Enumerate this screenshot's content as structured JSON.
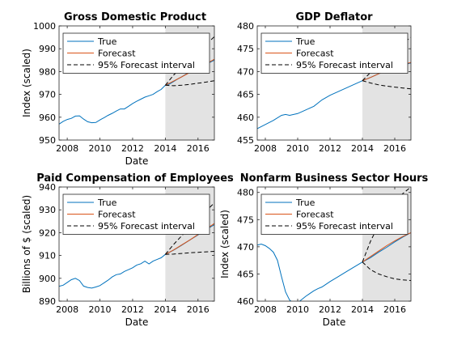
{
  "chart_data": [
    {
      "type": "line",
      "title": "Gross Domestic Product",
      "xlabel": "Date",
      "ylabel": "Index (scaled)",
      "xlim": [
        2007.5,
        2017.0
      ],
      "ylim": [
        950,
        1000
      ],
      "xticks": [
        2008,
        2010,
        2012,
        2014,
        2016
      ],
      "yticks": [
        950,
        960,
        970,
        980,
        990,
        1000
      ],
      "shade_from": 2014.0,
      "legend_position": "top-left",
      "series": [
        {
          "name": "True",
          "color": "#0072bd",
          "style": "solid",
          "x": [
            2007.5,
            2007.75,
            2008.0,
            2008.25,
            2008.5,
            2008.75,
            2009.0,
            2009.25,
            2009.5,
            2009.75,
            2010.0,
            2010.25,
            2010.5,
            2010.75,
            2011.0,
            2011.25,
            2011.5,
            2011.75,
            2012.0,
            2012.25,
            2012.5,
            2012.75,
            2013.0,
            2013.25,
            2013.5,
            2013.75,
            2014.0,
            2014.25,
            2014.5,
            2014.75,
            2015.0,
            2015.25,
            2015.5,
            2015.75,
            2016.0,
            2016.25,
            2016.5,
            2016.75,
            2017.0
          ],
          "y": [
            957.0,
            958.2,
            959.0,
            959.5,
            960.5,
            960.6,
            959.2,
            958.0,
            957.6,
            957.7,
            958.8,
            959.8,
            960.8,
            961.7,
            962.7,
            963.6,
            963.6,
            964.8,
            966.0,
            967.0,
            967.9,
            968.8,
            969.4,
            970.0,
            971.2,
            972.2,
            974.0,
            974.5,
            975.6,
            976.7,
            977.7,
            978.8,
            979.7,
            980.7,
            981.6,
            982.5,
            983.3,
            984.1,
            985.0
          ]
        },
        {
          "name": "Forecast",
          "color": "#d95319",
          "style": "solid",
          "x": [
            2014.0,
            2014.5,
            2015.0,
            2015.5,
            2016.0,
            2016.5,
            2017.0
          ],
          "y": [
            974.0,
            975.8,
            977.7,
            979.6,
            981.5,
            983.4,
            985.4
          ]
        },
        {
          "name": "95% Forecast interval",
          "color": "#000000",
          "style": "dashed",
          "x": [
            2014.0,
            2014.5,
            2015.0,
            2015.5,
            2016.0,
            2016.5,
            2017.0
          ],
          "y": [
            974.0,
            978.4,
            982.0,
            985.3,
            988.6,
            991.9,
            995.3
          ]
        },
        {
          "name": "",
          "color": "#000000",
          "style": "dashed",
          "x": [
            2014.0,
            2014.5,
            2015.0,
            2015.5,
            2016.0,
            2016.5,
            2017.0
          ],
          "y": [
            974.0,
            973.8,
            974.0,
            974.4,
            974.9,
            975.4,
            976.0
          ]
        }
      ]
    },
    {
      "type": "line",
      "title": "GDP Deflator",
      "xlabel": "",
      "ylabel": "",
      "xlim": [
        2007.5,
        2017.0
      ],
      "ylim": [
        455,
        480
      ],
      "xticks": [
        2008,
        2010,
        2012,
        2014,
        2016
      ],
      "yticks": [
        455,
        460,
        465,
        470,
        475,
        480
      ],
      "shade_from": 2014.0,
      "legend_position": "top-left",
      "series": [
        {
          "name": "True",
          "color": "#0072bd",
          "style": "solid",
          "x": [
            2007.5,
            2008.0,
            2008.5,
            2009.0,
            2009.25,
            2009.5,
            2010.0,
            2010.5,
            2011.0,
            2011.5,
            2012.0,
            2012.5,
            2013.0,
            2013.5,
            2014.0,
            2014.5,
            2015.0,
            2015.5,
            2016.0,
            2016.5,
            2017.0
          ],
          "y": [
            457.5,
            458.4,
            459.3,
            460.4,
            460.6,
            460.4,
            460.8,
            461.6,
            462.4,
            463.8,
            464.8,
            465.6,
            466.4,
            467.2,
            468.0,
            468.7,
            469.5,
            470.2,
            470.9,
            471.4,
            471.9
          ]
        },
        {
          "name": "Forecast",
          "color": "#d95319",
          "style": "solid",
          "x": [
            2014.0,
            2014.5,
            2015.0,
            2015.5,
            2016.0,
            2016.5,
            2017.0
          ],
          "y": [
            468.0,
            468.7,
            469.5,
            470.2,
            470.9,
            471.5,
            472.0
          ]
        },
        {
          "name": "95% Forecast interval",
          "color": "#000000",
          "style": "dashed",
          "x": [
            2014.0,
            2014.5,
            2015.0,
            2015.5,
            2016.0,
            2016.5,
            2017.0
          ],
          "y": [
            468.0,
            469.8,
            471.6,
            473.2,
            474.8,
            476.2,
            477.5
          ]
        },
        {
          "name": "",
          "color": "#000000",
          "style": "dashed",
          "x": [
            2014.0,
            2014.5,
            2015.0,
            2015.5,
            2016.0,
            2016.5,
            2017.0
          ],
          "y": [
            468.0,
            467.5,
            467.1,
            466.8,
            466.6,
            466.4,
            466.2
          ]
        }
      ]
    },
    {
      "type": "line",
      "title": "Paid Compensation of Employees",
      "xlabel": "Date",
      "ylabel": "Billions of $ (scaled)",
      "xlim": [
        2007.5,
        2017.0
      ],
      "ylim": [
        890,
        940
      ],
      "xticks": [
        2008,
        2010,
        2012,
        2014,
        2016
      ],
      "yticks": [
        890,
        900,
        910,
        920,
        930,
        940
      ],
      "shade_from": 2014.0,
      "legend_position": "top-left",
      "series": [
        {
          "name": "True",
          "color": "#0072bd",
          "style": "solid",
          "x": [
            2007.5,
            2007.75,
            2008.0,
            2008.25,
            2008.5,
            2008.75,
            2009.0,
            2009.25,
            2009.5,
            2009.75,
            2010.0,
            2010.25,
            2010.5,
            2010.75,
            2011.0,
            2011.25,
            2011.5,
            2011.75,
            2012.0,
            2012.25,
            2012.5,
            2012.75,
            2013.0,
            2013.25,
            2013.5,
            2013.75,
            2014.0,
            2014.5,
            2015.0,
            2015.5,
            2016.0,
            2016.5,
            2017.0
          ],
          "y": [
            896.5,
            897.0,
            898.2,
            899.4,
            900.0,
            899.0,
            896.6,
            896.0,
            895.7,
            896.2,
            896.8,
            898.0,
            899.2,
            900.6,
            901.6,
            901.9,
            903.0,
            903.8,
            904.6,
            905.8,
            906.4,
            907.5,
            906.3,
            907.5,
            908.3,
            909.0,
            910.5,
            912.3,
            914.5,
            916.8,
            919.0,
            921.4,
            923.5
          ]
        },
        {
          "name": "Forecast",
          "color": "#d95319",
          "style": "solid",
          "x": [
            2014.0,
            2014.5,
            2015.0,
            2015.5,
            2016.0,
            2016.5,
            2017.0
          ],
          "y": [
            910.5,
            912.4,
            914.6,
            916.8,
            919.2,
            921.6,
            924.0
          ]
        },
        {
          "name": "95% Forecast interval",
          "color": "#000000",
          "style": "dashed",
          "x": [
            2014.0,
            2014.5,
            2015.0,
            2015.5,
            2016.0,
            2016.5,
            2017.0
          ],
          "y": [
            910.5,
            914.8,
            918.6,
            922.3,
            926.0,
            929.6,
            933.0
          ]
        },
        {
          "name": "",
          "color": "#000000",
          "style": "dashed",
          "x": [
            2014.0,
            2014.5,
            2015.0,
            2015.5,
            2016.0,
            2016.5,
            2017.0
          ],
          "y": [
            910.5,
            910.6,
            910.9,
            911.2,
            911.4,
            911.6,
            911.8
          ]
        }
      ]
    },
    {
      "type": "line",
      "title": "Nonfarm Business Sector Hours",
      "xlabel": "Date",
      "ylabel": "Index (scaled)",
      "xlim": [
        2007.5,
        2017.0
      ],
      "ylim": [
        460,
        481
      ],
      "xticks": [
        2008,
        2010,
        2012,
        2014,
        2016
      ],
      "yticks": [
        460,
        465,
        470,
        475,
        480
      ],
      "shade_from": 2014.0,
      "legend_position": "top-left",
      "series": [
        {
          "name": "True",
          "color": "#0072bd",
          "style": "solid",
          "x": [
            2007.5,
            2007.75,
            2008.0,
            2008.25,
            2008.5,
            2008.75,
            2009.0,
            2009.25,
            2009.5,
            2009.75,
            2010.0,
            2010.25,
            2010.5,
            2010.75,
            2011.0,
            2011.25,
            2011.5,
            2011.75,
            2012.0,
            2012.5,
            2013.0,
            2013.5,
            2014.0,
            2014.5,
            2015.0,
            2015.5,
            2016.0,
            2016.5,
            2017.0
          ],
          "y": [
            470.3,
            470.5,
            470.2,
            469.7,
            469.0,
            467.5,
            464.5,
            461.7,
            460.2,
            459.6,
            459.7,
            460.3,
            460.9,
            461.4,
            461.9,
            462.3,
            462.6,
            463.1,
            463.6,
            464.5,
            465.4,
            466.3,
            467.2,
            468.0,
            469.0,
            469.9,
            470.9,
            471.8,
            472.6
          ]
        },
        {
          "name": "Forecast",
          "color": "#d95319",
          "style": "solid",
          "x": [
            2014.0,
            2014.5,
            2015.0,
            2015.5,
            2016.0,
            2016.5,
            2017.0
          ],
          "y": [
            467.2,
            468.2,
            469.2,
            470.2,
            471.1,
            471.9,
            472.6
          ]
        },
        {
          "name": "95% Forecast interval",
          "color": "#000000",
          "style": "dashed",
          "x": [
            2014.0,
            2014.5,
            2015.0,
            2015.5,
            2016.0,
            2016.5,
            2017.0
          ],
          "y": [
            467.2,
            471.0,
            474.0,
            476.3,
            478.2,
            479.8,
            481.0
          ]
        },
        {
          "name": "",
          "color": "#000000",
          "style": "dashed",
          "x": [
            2014.0,
            2014.5,
            2015.0,
            2015.5,
            2016.0,
            2016.5,
            2017.0
          ],
          "y": [
            467.2,
            465.8,
            465.0,
            464.5,
            464.1,
            463.9,
            463.8
          ]
        }
      ]
    }
  ]
}
